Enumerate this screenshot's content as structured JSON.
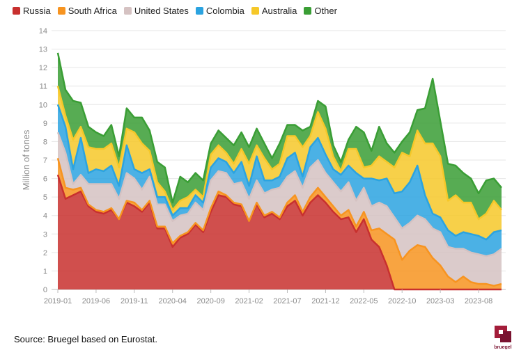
{
  "chart_data": {
    "type": "area",
    "stacked": true,
    "ylabel": "Million of tones",
    "ylim": [
      0,
      14
    ],
    "yticks": [
      0,
      1,
      2,
      3,
      4,
      5,
      6,
      7,
      8,
      9,
      10,
      11,
      12,
      13,
      14
    ],
    "xtick_labels": [
      "2019-01",
      "2019-06",
      "2019-11",
      "2020-04",
      "2020-09",
      "2021-02",
      "2021-07",
      "2021-12",
      "2022-05",
      "2022-10",
      "2023-03",
      "2023-08"
    ],
    "grid": "horizontal",
    "legend_position": "top-left",
    "x": [
      "2019-01",
      "2019-02",
      "2019-03",
      "2019-04",
      "2019-05",
      "2019-06",
      "2019-07",
      "2019-08",
      "2019-09",
      "2019-10",
      "2019-11",
      "2019-12",
      "2020-01",
      "2020-02",
      "2020-03",
      "2020-04",
      "2020-05",
      "2020-06",
      "2020-07",
      "2020-08",
      "2020-09",
      "2020-10",
      "2020-11",
      "2020-12",
      "2021-01",
      "2021-02",
      "2021-03",
      "2021-04",
      "2021-05",
      "2021-06",
      "2021-07",
      "2021-08",
      "2021-09",
      "2021-10",
      "2021-11",
      "2021-12",
      "2022-01",
      "2022-02",
      "2022-03",
      "2022-04",
      "2022-05",
      "2022-06",
      "2022-07",
      "2022-08",
      "2022-09",
      "2022-10",
      "2022-11",
      "2022-12",
      "2023-01",
      "2023-02",
      "2023-03",
      "2023-04",
      "2023-05",
      "2023-06",
      "2023-07",
      "2023-08",
      "2023-09",
      "2023-10",
      "2023-11"
    ],
    "series": [
      {
        "name": "Russia",
        "color": "#c8302e",
        "values": [
          6.2,
          4.9,
          5.1,
          5.3,
          4.5,
          4.2,
          4.1,
          4.3,
          3.8,
          4.7,
          4.5,
          4.2,
          4.7,
          3.3,
          3.3,
          2.3,
          2.8,
          3.0,
          3.5,
          3.1,
          4.2,
          5.1,
          5.0,
          4.6,
          4.5,
          3.7,
          4.6,
          3.9,
          4.1,
          3.8,
          4.5,
          4.8,
          4.0,
          4.7,
          5.1,
          4.7,
          4.2,
          3.8,
          3.9,
          3.1,
          3.8,
          2.7,
          2.3,
          1.3,
          0.0,
          0.0,
          0.0,
          0.0,
          0.0,
          0.0,
          0.0,
          0.0,
          0.0,
          0.0,
          0.0,
          0.0,
          0.0,
          0.0,
          0.0
        ]
      },
      {
        "name": "South Africa",
        "color": "#f79420",
        "values": [
          0.9,
          0.6,
          0.3,
          0.2,
          0.1,
          0.1,
          0.1,
          0.1,
          0.0,
          0.1,
          0.2,
          0.1,
          0.1,
          0.1,
          0.1,
          0.2,
          0.1,
          0.1,
          0.1,
          0.1,
          0.2,
          0.2,
          0.1,
          0.1,
          0.1,
          0.0,
          0.1,
          0.1,
          0.1,
          0.1,
          0.2,
          0.3,
          0.2,
          0.3,
          0.4,
          0.3,
          0.3,
          0.2,
          0.4,
          0.3,
          0.4,
          0.5,
          1.0,
          1.7,
          2.7,
          1.6,
          2.1,
          2.4,
          2.3,
          1.7,
          1.3,
          0.7,
          0.4,
          0.7,
          0.4,
          0.3,
          0.3,
          0.2,
          0.3
        ]
      },
      {
        "name": "United States",
        "color": "#d5c2c2",
        "values": [
          1.4,
          1.9,
          0.3,
          0.7,
          1.1,
          1.4,
          1.5,
          1.3,
          1.1,
          1.5,
          1.3,
          1.1,
          1.3,
          1.2,
          1.2,
          1.2,
          1.1,
          1.0,
          1.1,
          1.1,
          1.5,
          1.1,
          1.2,
          1.0,
          1.2,
          1.2,
          1.2,
          1.2,
          1.2,
          1.6,
          1.4,
          1.3,
          1.3,
          1.6,
          1.5,
          1.3,
          1.3,
          1.3,
          1.5,
          1.4,
          1.3,
          1.3,
          1.4,
          1.5,
          1.2,
          1.7,
          1.5,
          1.6,
          1.5,
          1.6,
          1.8,
          1.6,
          1.8,
          1.5,
          1.6,
          1.6,
          1.5,
          1.7,
          1.9
        ]
      },
      {
        "name": "Colombia",
        "color": "#2ba3e0",
        "values": [
          1.5,
          1.4,
          0.8,
          2.0,
          0.6,
          0.8,
          0.7,
          1.0,
          0.7,
          1.5,
          0.5,
          0.9,
          0.4,
          0.4,
          0.4,
          0.3,
          0.4,
          0.3,
          0.4,
          0.4,
          0.7,
          0.7,
          0.6,
          0.6,
          1.1,
          0.7,
          1.3,
          0.7,
          0.5,
          0.6,
          1.0,
          1.0,
          0.6,
          1.1,
          1.2,
          1.0,
          0.7,
          0.9,
          0.9,
          1.5,
          0.5,
          1.5,
          1.2,
          1.5,
          1.3,
          2.0,
          2.2,
          2.7,
          1.3,
          0.8,
          0.8,
          0.9,
          0.7,
          0.9,
          1.0,
          1.0,
          0.9,
          1.2,
          1.0
        ]
      },
      {
        "name": "Australia",
        "color": "#f6c829",
        "values": [
          1.0,
          0.6,
          1.6,
          0.6,
          1.4,
          1.1,
          1.2,
          1.2,
          1.0,
          0.9,
          2.0,
          1.6,
          1.0,
          0.8,
          0.3,
          0.3,
          0.4,
          0.6,
          0.3,
          0.3,
          0.7,
          0.7,
          0.5,
          0.5,
          0.7,
          1.2,
          0.6,
          1.2,
          0.6,
          0.7,
          1.2,
          0.9,
          1.6,
          0.6,
          1.4,
          1.4,
          0.7,
          0.2,
          0.9,
          1.3,
          0.6,
          0.7,
          1.3,
          0.9,
          1.4,
          2.1,
          1.4,
          1.9,
          2.8,
          3.8,
          3.3,
          1.6,
          2.2,
          1.6,
          1.7,
          0.9,
          1.4,
          1.7,
          1.1
        ]
      },
      {
        "name": "Other",
        "color": "#3a9e35",
        "values": [
          1.8,
          1.4,
          2.1,
          1.3,
          1.1,
          0.9,
          0.7,
          1.0,
          0.6,
          1.1,
          0.8,
          1.4,
          1.1,
          1.1,
          1.3,
          0.4,
          1.3,
          0.8,
          0.9,
          0.9,
          0.6,
          0.8,
          0.8,
          1.0,
          0.9,
          0.9,
          0.9,
          0.8,
          0.6,
          1.1,
          0.6,
          0.6,
          0.9,
          0.5,
          0.6,
          1.2,
          0.6,
          0.5,
          0.5,
          1.2,
          1.9,
          0.8,
          1.6,
          1.0,
          0.8,
          0.6,
          1.3,
          1.1,
          1.9,
          3.5,
          1.9,
          2.0,
          1.6,
          1.6,
          1.3,
          1.4,
          1.8,
          1.2,
          1.2
        ]
      }
    ]
  },
  "footer": {
    "source": "Source: Bruegel based on Eurostat.",
    "logo_text": "bruegel"
  }
}
